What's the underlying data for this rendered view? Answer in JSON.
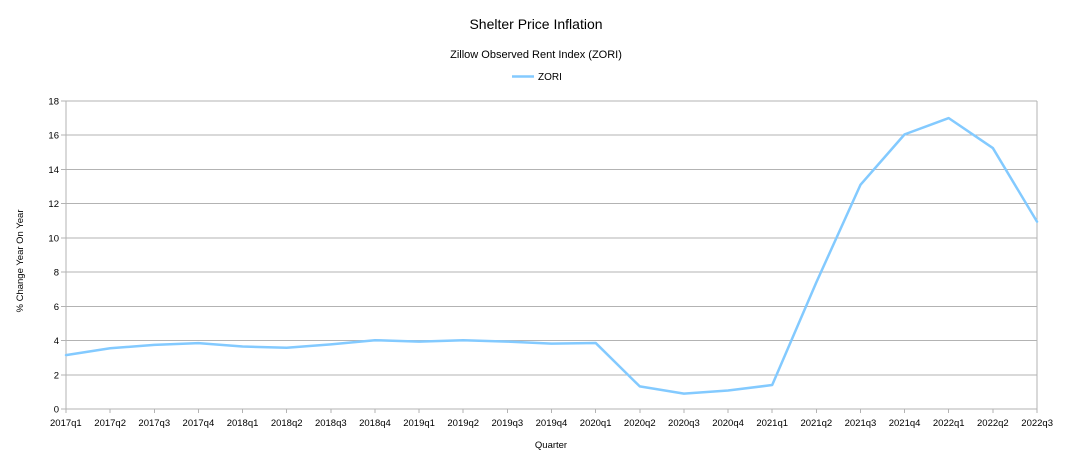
{
  "chart_data": {
    "type": "line",
    "title": "Shelter Price Inflation",
    "subtitle": "Zillow Observed Rent Index (ZORI)",
    "xlabel": "Quarter",
    "ylabel": "% Change Year On Year",
    "ylim": [
      0,
      18
    ],
    "yticks": [
      0,
      2,
      4,
      6,
      8,
      10,
      12,
      14,
      16,
      18
    ],
    "grid": true,
    "legend_position": "top-center",
    "categories": [
      "2017q1",
      "2017q2",
      "2017q3",
      "2017q4",
      "2018q1",
      "2018q2",
      "2018q3",
      "2018q4",
      "2019q1",
      "2019q2",
      "2019q3",
      "2019q4",
      "2020q1",
      "2020q2",
      "2020q3",
      "2020q4",
      "2021q1",
      "2021q2",
      "2021q3",
      "2021q4",
      "2022q1",
      "2022q2",
      "2022q3"
    ],
    "series": [
      {
        "name": "ZORI",
        "color": "#83caff",
        "values": [
          3.15,
          3.55,
          3.75,
          3.85,
          3.65,
          3.58,
          3.78,
          4.02,
          3.94,
          4.02,
          3.94,
          3.82,
          3.86,
          1.32,
          0.9,
          1.08,
          1.4,
          7.4,
          13.1,
          16.05,
          17.0,
          15.25,
          10.95
        ]
      }
    ]
  }
}
